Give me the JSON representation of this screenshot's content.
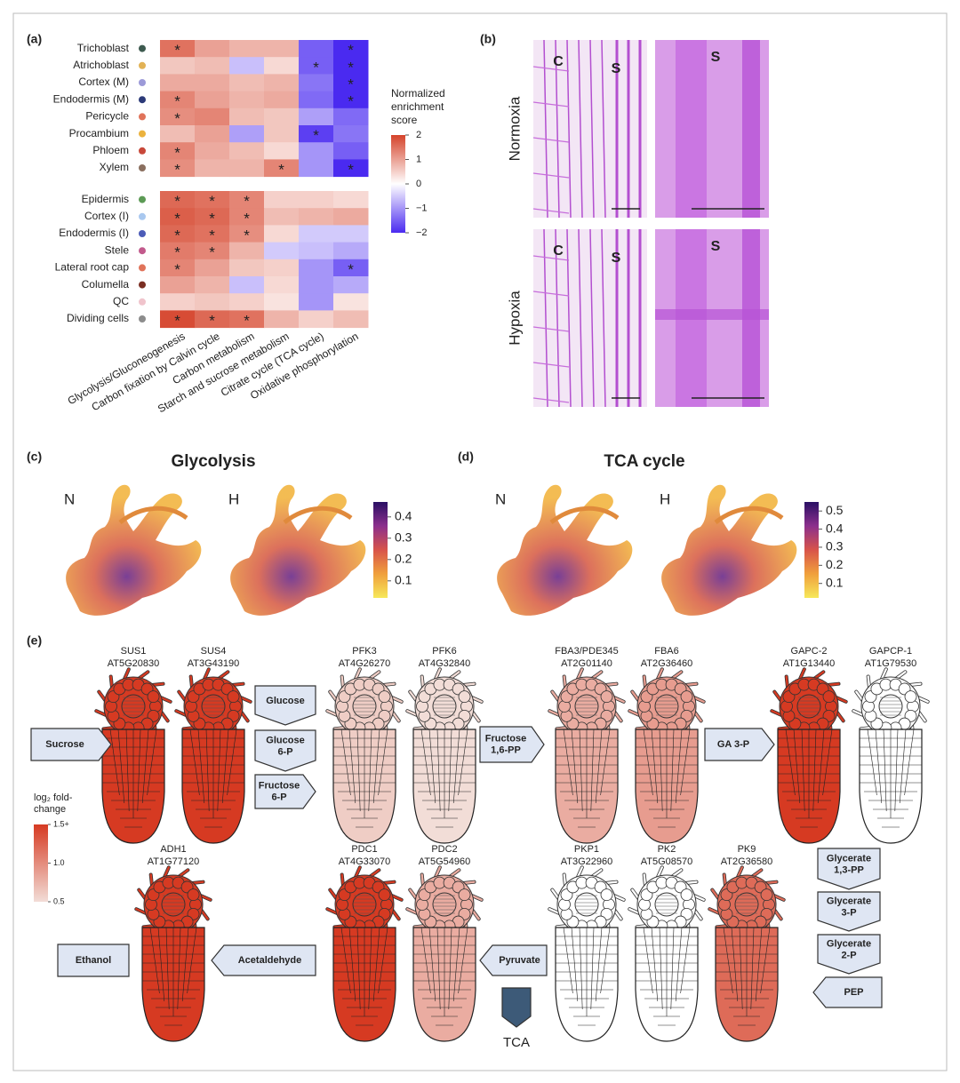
{
  "chart_data": {
    "type": "heatmap",
    "panel_label": "(a)",
    "columns": [
      "Glycolysis/Gluconeogenesis",
      "Carbon fixation by Calvin cycle",
      "Carbon metabolism",
      "Starch and sucrose metabolism",
      "Citrate cycle (TCA cycle)",
      "Oxidative phosphorylation"
    ],
    "row_groups": [
      {
        "rows": [
          "Trichoblast",
          "Atrichoblast",
          "Cortex (M)",
          "Endodermis (M)",
          "Pericycle",
          "Procambium",
          "Phloem",
          "Xylem"
        ],
        "row_colors": [
          "#3d5a4f",
          "#e2b255",
          "#9c9ad8",
          "#2c3a78",
          "#e0735a",
          "#ebb23e",
          "#c8483a",
          "#8a6f5f"
        ],
        "values": [
          [
            1.5,
            1.0,
            0.8,
            0.8,
            -1.5,
            -2.0
          ],
          [
            0.6,
            0.7,
            -0.6,
            0.4,
            -1.5,
            -2.0
          ],
          [
            0.9,
            0.9,
            0.7,
            0.8,
            -1.3,
            -2.0
          ],
          [
            1.3,
            1.0,
            0.8,
            0.9,
            -1.4,
            -2.0
          ],
          [
            1.2,
            1.3,
            0.7,
            0.6,
            -0.9,
            -1.4
          ],
          [
            0.7,
            1.0,
            -0.9,
            0.6,
            -1.8,
            -1.3
          ],
          [
            1.3,
            0.9,
            0.7,
            0.4,
            -1.0,
            -1.5
          ],
          [
            1.2,
            0.8,
            0.8,
            1.3,
            -1.0,
            -2.2
          ]
        ],
        "significant": [
          [
            true,
            false,
            false,
            false,
            false,
            true
          ],
          [
            false,
            false,
            false,
            false,
            true,
            true
          ],
          [
            false,
            false,
            false,
            false,
            false,
            true
          ],
          [
            true,
            false,
            false,
            false,
            false,
            true
          ],
          [
            true,
            false,
            false,
            false,
            false,
            false
          ],
          [
            false,
            false,
            false,
            false,
            true,
            false
          ],
          [
            true,
            false,
            false,
            false,
            false,
            false
          ],
          [
            true,
            false,
            false,
            true,
            false,
            true
          ]
        ]
      },
      {
        "rows": [
          "Epidermis",
          "Cortex (I)",
          "Endodermis (I)",
          "Stele",
          "Lateral root cap",
          "Columella",
          "QC",
          "Dividing cells"
        ],
        "row_colors": [
          "#5c9a55",
          "#a9c8ef",
          "#4c5cb8",
          "#c25a8c",
          "#e0735a",
          "#7a2e22",
          "#f0c4cc",
          "#8c8c8c"
        ],
        "values": [
          [
            1.6,
            1.5,
            1.3,
            0.5,
            0.5,
            0.4
          ],
          [
            1.7,
            1.6,
            1.3,
            0.7,
            0.8,
            0.9
          ],
          [
            1.6,
            1.5,
            1.2,
            0.4,
            -0.5,
            -0.5
          ],
          [
            1.4,
            1.3,
            0.8,
            -0.5,
            -0.6,
            -0.8
          ],
          [
            1.3,
            1.0,
            0.6,
            0.5,
            -1.0,
            -1.5
          ],
          [
            1.0,
            0.8,
            -0.6,
            0.4,
            -1.0,
            -0.8
          ],
          [
            0.5,
            0.6,
            0.5,
            0.3,
            -1.0,
            0.3
          ],
          [
            1.9,
            1.6,
            1.5,
            0.8,
            0.5,
            0.7
          ]
        ],
        "significant": [
          [
            true,
            true,
            true,
            false,
            false,
            false
          ],
          [
            true,
            true,
            true,
            false,
            false,
            false
          ],
          [
            true,
            true,
            true,
            false,
            false,
            false
          ],
          [
            true,
            true,
            false,
            false,
            false,
            false
          ],
          [
            true,
            false,
            false,
            false,
            false,
            true
          ],
          [
            false,
            false,
            false,
            false,
            false,
            false
          ],
          [
            false,
            false,
            false,
            false,
            false,
            false
          ],
          [
            true,
            true,
            true,
            false,
            false,
            false
          ]
        ]
      }
    ],
    "marker": "*",
    "colors": {
      "low": "#4a2af0",
      "mid": "#ffffff",
      "high": "#d5432a"
    },
    "colorbar": {
      "title": [
        "Normalized",
        "enrichment",
        "score"
      ],
      "lim": [
        -2,
        2
      ],
      "ticks": [
        2,
        1,
        0,
        {
          "value": -1,
          "label": "−1"
        },
        {
          "value": -2,
          "label": "−2"
        }
      ]
    }
  },
  "panel_b": {
    "label": "(b)",
    "images": [
      {
        "condition": "Normoxia",
        "left_labels": [
          "C",
          "S"
        ],
        "right_labels": [
          "S"
        ]
      },
      {
        "condition": "Hypoxia",
        "left_labels": [
          "C",
          "S"
        ],
        "right_labels": [
          "S"
        ]
      }
    ]
  },
  "panel_c": {
    "label": "(c)",
    "title": "Glycolysis",
    "conditions": [
      "N",
      "H"
    ],
    "colorbar": {
      "lim": [
        0.02,
        0.47
      ],
      "ticks": [
        0.4,
        0.3,
        0.2,
        0.1
      ]
    }
  },
  "panel_d": {
    "label": "(d)",
    "title": "TCA cycle",
    "conditions": [
      "N",
      "H"
    ],
    "colorbar": {
      "lim": [
        0.02,
        0.55
      ],
      "ticks": [
        0.5,
        0.4,
        0.3,
        0.2,
        0.1
      ]
    }
  },
  "umap_colors": [
    "#f6e85a",
    "#f0a03c",
    "#d8544a",
    "#8c2f8c",
    "#2a1064"
  ],
  "panel_e": {
    "label": "(e)",
    "legend": {
      "title": [
        "log₂ fold-",
        "change"
      ],
      "lim": [
        0.5,
        1.5
      ],
      "colors": [
        "#f2ddd7",
        "#d63a22"
      ],
      "ticks": [
        {
          "value": 1.5,
          "label": "1.5+"
        },
        {
          "value": 1.0,
          "label": "1.0"
        },
        0.5
      ]
    },
    "genes": [
      {
        "name": "SUS1",
        "id": "AT5G20830",
        "fold_change": 1.5
      },
      {
        "name": "SUS4",
        "id": "AT3G43190",
        "fold_change": 1.5
      },
      {
        "name": "PFK3",
        "id": "AT4G26270",
        "fold_change": 0.6
      },
      {
        "name": "PFK6",
        "id": "AT4G32840",
        "fold_change": 0.5
      },
      {
        "name": "FBA3/PDE345",
        "id": "AT2G01140",
        "fold_change": 0.8
      },
      {
        "name": "FBA6",
        "id": "AT2G36460",
        "fold_change": 0.9
      },
      {
        "name": "GAPC-2",
        "id": "AT1G13440",
        "fold_change": 1.5
      },
      {
        "name": "GAPCP-1",
        "id": "AT1G79530",
        "fold_change": 0.3
      },
      {
        "name": "ADH1",
        "id": "AT1G77120",
        "fold_change": 1.5
      },
      {
        "name": "PDC1",
        "id": "AT4G33070",
        "fold_change": 1.5
      },
      {
        "name": "PDC2",
        "id": "AT5G54960",
        "fold_change": 0.8
      },
      {
        "name": "PKP1",
        "id": "AT3G22960",
        "fold_change": 0.3
      },
      {
        "name": "PK2",
        "id": "AT5G08570",
        "fold_change": 0.3
      },
      {
        "name": "PK9",
        "id": "AT2G36580",
        "fold_change": 1.2
      }
    ],
    "metabolites": [
      {
        "lines": [
          "Sucrose"
        ]
      },
      {
        "lines": [
          "Glucose"
        ]
      },
      {
        "lines": [
          "Glucose",
          "6-P"
        ]
      },
      {
        "lines": [
          "Fructose",
          "6-P"
        ]
      },
      {
        "lines": [
          "Fructose",
          "1,6-PP"
        ]
      },
      {
        "lines": [
          "GA 3-P"
        ]
      },
      {
        "lines": [
          "Glycerate",
          "1,3-PP"
        ]
      },
      {
        "lines": [
          "Glycerate",
          "3-P"
        ]
      },
      {
        "lines": [
          "Glycerate",
          "2-P"
        ]
      },
      {
        "lines": [
          "PEP"
        ]
      },
      {
        "lines": [
          "Pyruvate"
        ]
      },
      {
        "lines": [
          "Acetaldehyde"
        ]
      },
      {
        "lines": [
          "Ethanol"
        ]
      },
      {
        "lines": [
          "TCA"
        ]
      }
    ]
  }
}
